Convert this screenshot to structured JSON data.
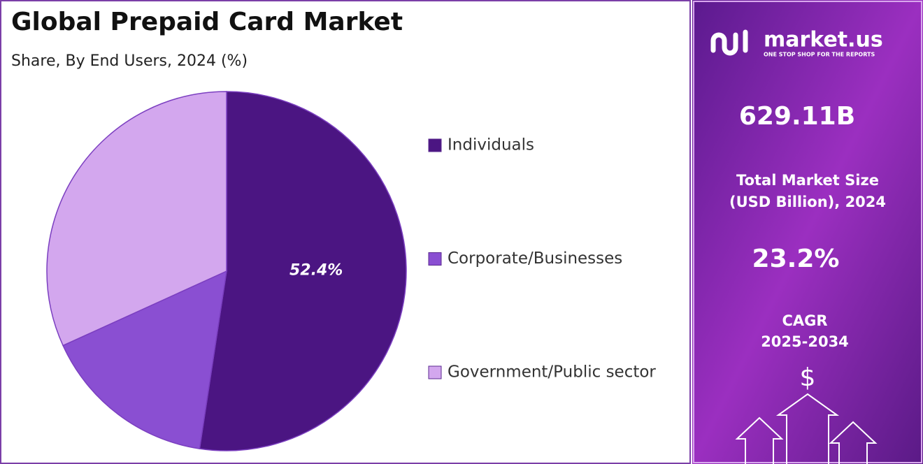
{
  "chart_data": {
    "type": "pie",
    "title": "Global Prepaid Card Market",
    "subtitle": "Share, By End Users, 2024 (%)",
    "categories": [
      "Individuals",
      "Corporate/Businesses",
      "Government/Public sector"
    ],
    "values": [
      52.4,
      15.8,
      31.8
    ],
    "value_labels": [
      "52.4%",
      null,
      null
    ],
    "colors": [
      "#4b1582",
      "#8a4fd2",
      "#d3a7ee"
    ],
    "legend": "right"
  },
  "panel": {
    "brand": "market.us",
    "tagline": "ONE STOP SHOP FOR THE REPORTS",
    "market_size": "629.11B",
    "market_size_label": [
      "Total Market Size",
      "(USD Billion), 2024"
    ],
    "cagr": "23.2%",
    "cagr_label": [
      "CAGR",
      "2025-2034"
    ],
    "currency": "$"
  }
}
